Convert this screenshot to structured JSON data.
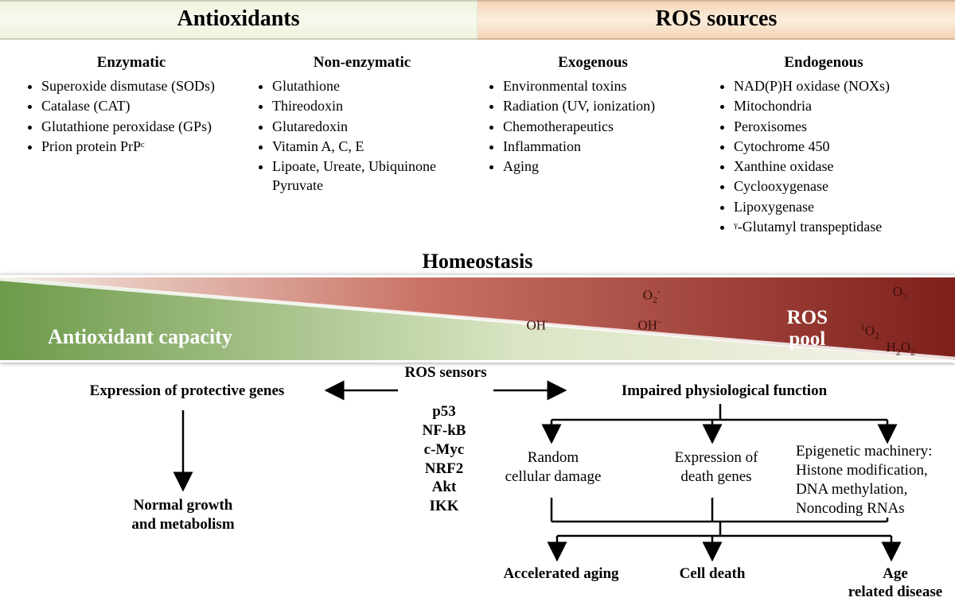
{
  "headers": {
    "left": "Antioxidants",
    "right": "ROS sources"
  },
  "columns": {
    "enzymatic": {
      "title": "Enzymatic",
      "items": [
        "Superoxide dismutase (SODs)",
        "Catalase (CAT)",
        "Glutathione peroxidase (GPs)",
        "Prion protein PrPᶜ"
      ]
    },
    "nonenzymatic": {
      "title": "Non-enzymatic",
      "items": [
        "Glutathione",
        "Thireodoxin",
        "Glutaredoxin",
        "Vitamin A, C, E",
        "Lipoate, Ureate, Ubiquinone Pyruvate"
      ]
    },
    "exogenous": {
      "title": "Exogenous",
      "items": [
        "Environmental toxins",
        "Radiation (UV, ionization)",
        "Chemotherapeutics",
        "Inflammation",
        "Aging"
      ]
    },
    "endogenous": {
      "title": "Endogenous",
      "items": [
        "NAD(P)H oxidase (NOXs)",
        "Mitochondria",
        "Peroxisomes",
        "Cytochrome 450",
        "Xanthine oxidase",
        "Cyclooxygenase",
        "Lipoxygenase",
        "ᵞ-Glutamyl transpeptidase"
      ]
    }
  },
  "homeostasis": "Homeostasis",
  "band": {
    "left_label": "Antioxidant capacity",
    "right_label": "ROS pool",
    "left_color_start": "#6d9a4a",
    "left_color_end": "#e9efd8",
    "right_color_start": "#8f2a24",
    "right_color_end": "#e7c6bd",
    "species": [
      "O₂⁻",
      "O₃",
      "OH·",
      "OH⁻",
      "¹O₂",
      "H₂O₂"
    ]
  },
  "sensors": {
    "title": "ROS sensors",
    "list": [
      "p53",
      "NF-kB",
      "c-Myc",
      "NRF2",
      "Akt",
      "IKK"
    ]
  },
  "flow": {
    "protective": "Expression of protective genes",
    "normal": "Normal growth\nand metabolism",
    "impaired": "Impaired physiological function",
    "random_damage": "Random\ncellular damage",
    "death_genes": "Expression of\ndeath genes",
    "epigenetic": "Epigenetic machinery:\nHistone modification,\nDNA methylation,\nNoncoding RNAs",
    "aging": "Accelerated aging",
    "cell_death": "Cell death",
    "age_disease": "Age\nrelated disease"
  },
  "colors": {
    "header_left_bg": "#eef4dd",
    "header_right_bg": "#f4d5b6",
    "text": "#000000",
    "band_shadow": "#888888"
  }
}
